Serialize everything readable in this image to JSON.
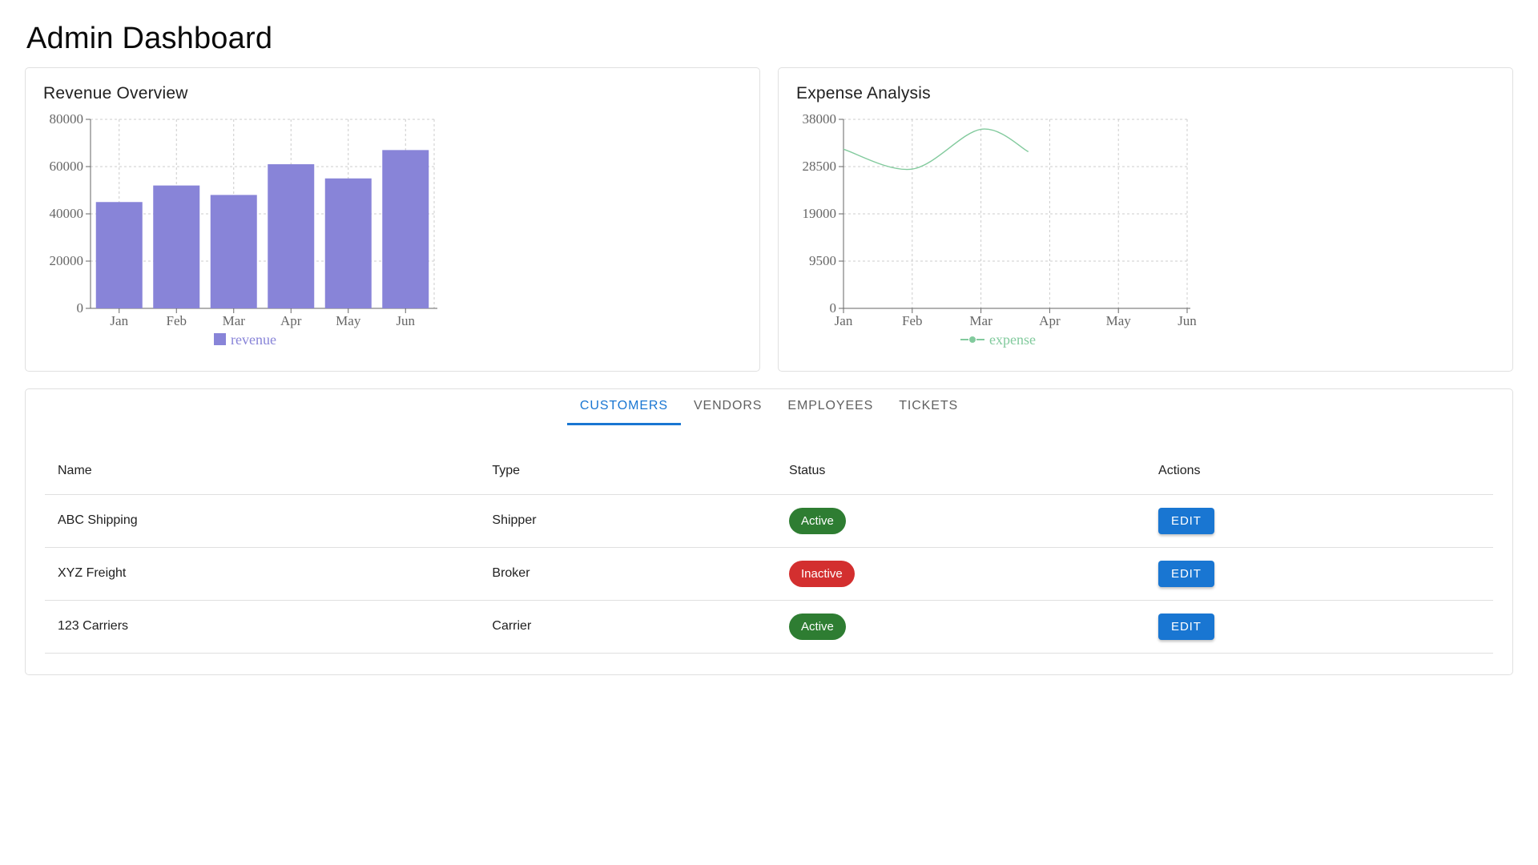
{
  "page": {
    "title": "Admin Dashboard"
  },
  "colors": {
    "bar": "#8884d8",
    "line": "#82ca9d",
    "axis": "#666666",
    "grid": "#cccccc",
    "primary_blue": "#1976d2",
    "tab_inactive": "#616161",
    "badge_green": "#2e7d32",
    "badge_red": "#d32f2f",
    "card_border": "#e0e0e0"
  },
  "chart_data": [
    {
      "id": "revenue",
      "type": "bar",
      "title": "Revenue Overview",
      "categories": [
        "Jan",
        "Feb",
        "Mar",
        "Apr",
        "May",
        "Jun"
      ],
      "series": [
        {
          "name": "revenue",
          "values": [
            45000,
            52000,
            48000,
            61000,
            55000,
            67000
          ]
        }
      ],
      "ylim": [
        0,
        80000
      ],
      "yticks": [
        0,
        20000,
        40000,
        60000,
        80000
      ],
      "grid": true,
      "legend_position": "bottom"
    },
    {
      "id": "expense",
      "type": "line",
      "title": "Expense Analysis",
      "categories": [
        "Jan",
        "Feb",
        "Mar",
        "Apr",
        "May",
        "Jun"
      ],
      "series": [
        {
          "name": "expense",
          "values": [
            32000,
            28000,
            36000,
            31500
          ],
          "x_positions": [
            0,
            1,
            2,
            2.69
          ]
        }
      ],
      "ylim": [
        0,
        38000
      ],
      "yticks": [
        0,
        9500,
        19000,
        28500,
        38000
      ],
      "grid": true,
      "smooth": true,
      "legend_position": "bottom"
    }
  ],
  "tabs": [
    {
      "label": "CUSTOMERS",
      "active": true
    },
    {
      "label": "VENDORS",
      "active": false
    },
    {
      "label": "EMPLOYEES",
      "active": false
    },
    {
      "label": "TICKETS",
      "active": false
    }
  ],
  "table": {
    "headers": [
      "Name",
      "Type",
      "Status",
      "Actions"
    ],
    "rows": [
      {
        "name": "ABC Shipping",
        "type": "Shipper",
        "status": "Active",
        "status_variant": "success",
        "action": "EDIT"
      },
      {
        "name": "XYZ Freight",
        "type": "Broker",
        "status": "Inactive",
        "status_variant": "danger",
        "action": "EDIT"
      },
      {
        "name": "123 Carriers",
        "type": "Carrier",
        "status": "Active",
        "status_variant": "success",
        "action": "EDIT"
      }
    ]
  }
}
